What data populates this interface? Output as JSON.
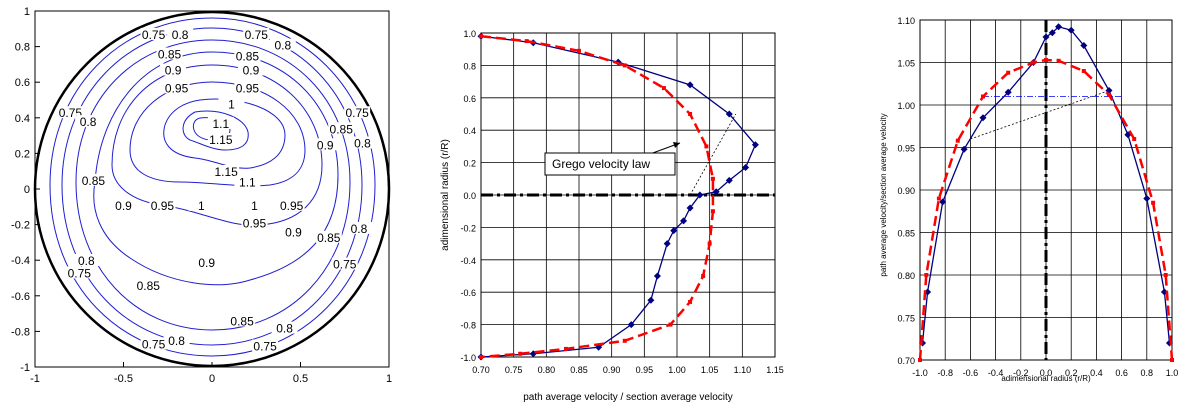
{
  "chart_data": [
    {
      "type": "contour",
      "xlim": [
        -1,
        1
      ],
      "ylim": [
        -1,
        1
      ],
      "xticks": [
        "-1",
        "-0.5",
        "0",
        "0.5",
        "1"
      ],
      "yticks": [
        "1",
        "0.8",
        "0.6",
        "0.4",
        "0.2",
        "0",
        "-0.2",
        "-0.4",
        "-0.6",
        "-0.8",
        "-1"
      ],
      "contour_levels": [
        "0.75",
        "0.8",
        "0.85",
        "0.9",
        "0.95",
        "1",
        "1.1",
        "1.15"
      ],
      "contour_labels": [
        {
          "text": "0.75",
          "x": -0.33,
          "y": 0.86
        },
        {
          "text": "0.8",
          "x": -0.18,
          "y": 0.86
        },
        {
          "text": "0.75",
          "x": 0.25,
          "y": 0.86
        },
        {
          "text": "0.8",
          "x": 0.4,
          "y": 0.8
        },
        {
          "text": "0.85",
          "x": -0.24,
          "y": 0.75
        },
        {
          "text": "0.85",
          "x": 0.2,
          "y": 0.74
        },
        {
          "text": "0.9",
          "x": -0.22,
          "y": 0.66
        },
        {
          "text": "0.9",
          "x": 0.22,
          "y": 0.66
        },
        {
          "text": "0.95",
          "x": -0.2,
          "y": 0.56
        },
        {
          "text": "0.95",
          "x": 0.2,
          "y": 0.56
        },
        {
          "text": "1",
          "x": 0.11,
          "y": 0.47
        },
        {
          "text": "1.1",
          "x": 0.05,
          "y": 0.36
        },
        {
          "text": "1.15",
          "x": 0.05,
          "y": 0.27
        },
        {
          "text": "1.15",
          "x": 0.08,
          "y": 0.09
        },
        {
          "text": "1.1",
          "x": 0.2,
          "y": 0.03
        },
        {
          "text": "0.75",
          "x": -0.8,
          "y": 0.42
        },
        {
          "text": "0.8",
          "x": -0.7,
          "y": 0.37
        },
        {
          "text": "0.75",
          "x": 0.82,
          "y": 0.42
        },
        {
          "text": "0.85",
          "x": 0.73,
          "y": 0.33
        },
        {
          "text": "0.8",
          "x": 0.85,
          "y": 0.25
        },
        {
          "text": "0.9",
          "x": 0.64,
          "y": 0.24
        },
        {
          "text": "0.85",
          "x": -0.67,
          "y": 0.04
        },
        {
          "text": "0.9",
          "x": -0.5,
          "y": -0.1
        },
        {
          "text": "0.95",
          "x": -0.28,
          "y": -0.1
        },
        {
          "text": "1",
          "x": -0.06,
          "y": -0.1
        },
        {
          "text": "1",
          "x": 0.24,
          "y": -0.1
        },
        {
          "text": "0.95",
          "x": 0.45,
          "y": -0.1
        },
        {
          "text": "0.95",
          "x": 0.24,
          "y": -0.2
        },
        {
          "text": "0.9",
          "x": 0.46,
          "y": -0.25
        },
        {
          "text": "0.85",
          "x": 0.66,
          "y": -0.28
        },
        {
          "text": "0.8",
          "x": 0.83,
          "y": -0.23
        },
        {
          "text": "0.75",
          "x": 0.75,
          "y": -0.43
        },
        {
          "text": "0.9",
          "x": -0.03,
          "y": -0.42
        },
        {
          "text": "0.8",
          "x": -0.71,
          "y": -0.41
        },
        {
          "text": "0.75",
          "x": -0.75,
          "y": -0.48
        },
        {
          "text": "0.85",
          "x": -0.36,
          "y": -0.55
        },
        {
          "text": "0.85",
          "x": 0.17,
          "y": -0.75
        },
        {
          "text": "0.8",
          "x": 0.41,
          "y": -0.79
        },
        {
          "text": "0.75",
          "x": 0.3,
          "y": -0.89
        },
        {
          "text": "0.8",
          "x": -0.2,
          "y": -0.86
        },
        {
          "text": "0.75",
          "x": -0.33,
          "y": -0.88
        }
      ]
    },
    {
      "type": "line",
      "xlabel": "path average velocity / section average velocity",
      "ylabel": "adimensional radius (r/R)",
      "xlim": [
        0.7,
        1.15
      ],
      "ylim": [
        -1.0,
        1.0
      ],
      "xticks": [
        "0.70",
        "0.75",
        "0.80",
        "0.85",
        "0.90",
        "0.95",
        "1.00",
        "1.05",
        "1.10",
        "1.15"
      ],
      "yticks": [
        "1.0",
        "0.8",
        "0.6",
        "0.4",
        "0.2",
        "0.0",
        "-0.2",
        "-0.4",
        "-0.6",
        "-0.8",
        "-1.0"
      ],
      "annotation": "Grego velocity law",
      "series": [
        {
          "name": "",
          "color": "#000080",
          "marker": "diamond",
          "x": [
            0.7,
            0.78,
            0.91,
            1.02,
            1.08,
            1.12,
            1.105,
            1.08,
            1.06,
            1.035,
            1.02,
            1.01,
            0.995,
            0.985,
            0.97,
            0.96,
            0.93,
            0.88,
            0.78,
            0.7
          ],
          "y": [
            0.98,
            0.94,
            0.82,
            0.68,
            0.5,
            0.31,
            0.17,
            0.09,
            0.02,
            0.0,
            -0.08,
            -0.16,
            -0.22,
            -0.3,
            -0.5,
            -0.65,
            -0.8,
            -0.94,
            -0.98,
            -1.0
          ]
        },
        {
          "name": "",
          "color": "#ff0000",
          "dashed": true,
          "marker": "square",
          "x": [
            0.7,
            0.77,
            0.85,
            0.92,
            0.98,
            1.02,
            1.045,
            1.055,
            1.055,
            1.05,
            1.04,
            1.02,
            0.99,
            0.92,
            0.83,
            0.76,
            0.7
          ],
          "y": [
            0.98,
            0.95,
            0.89,
            0.8,
            0.66,
            0.5,
            0.3,
            0.1,
            -0.1,
            -0.3,
            -0.5,
            -0.66,
            -0.8,
            -0.9,
            -0.95,
            -0.98,
            -1.0
          ]
        }
      ]
    },
    {
      "type": "line",
      "xlabel": "adimensional radius (r/R)",
      "ylabel": "path average velocity/section average velocity",
      "xlim": [
        -1.0,
        1.0
      ],
      "ylim": [
        0.7,
        1.1
      ],
      "xticks": [
        "-1.0",
        "-0.8",
        "-0.6",
        "-0.4",
        "-0.2",
        "0.0",
        "0.2",
        "0.4",
        "0.6",
        "0.8",
        "1.0"
      ],
      "yticks": [
        "1.10",
        "1.05",
        "1.00",
        "0.95",
        "0.90",
        "0.85",
        "0.80",
        "0.75",
        "0.70"
      ],
      "series": [
        {
          "name": "",
          "color": "#000080",
          "marker": "diamond",
          "x": [
            -0.98,
            -0.94,
            -0.82,
            -0.65,
            -0.5,
            -0.3,
            -0.1,
            0.0,
            0.05,
            0.1,
            0.2,
            0.3,
            0.5,
            0.65,
            0.8,
            0.94,
            0.98
          ],
          "y": [
            0.72,
            0.78,
            0.886,
            0.948,
            0.985,
            1.015,
            1.05,
            1.08,
            1.085,
            1.092,
            1.088,
            1.07,
            1.017,
            0.965,
            0.89,
            0.78,
            0.72
          ]
        },
        {
          "name": "",
          "color": "#ff0000",
          "dashed": true,
          "marker": "square",
          "x": [
            -1.0,
            -0.95,
            -0.85,
            -0.7,
            -0.5,
            -0.3,
            -0.1,
            0.0,
            0.1,
            0.3,
            0.5,
            0.7,
            0.85,
            0.95,
            1.0
          ],
          "y": [
            0.7,
            0.8,
            0.89,
            0.958,
            1.01,
            1.038,
            1.05,
            1.053,
            1.052,
            1.04,
            1.012,
            0.96,
            0.885,
            0.8,
            0.7
          ]
        }
      ]
    }
  ]
}
